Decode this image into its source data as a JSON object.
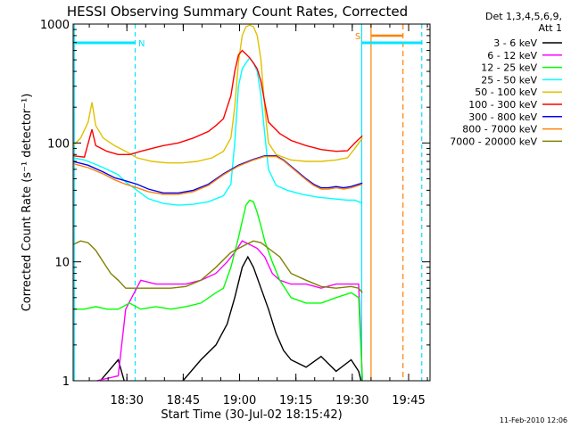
{
  "chart_data": {
    "type": "line",
    "title": "HESSI Observing Summary Count Rates, Corrected",
    "xlabel": "Start Time (30-Jul-02 18:15:42)",
    "ylabel": "Corrected Count Rate (s⁻¹ detector⁻¹)",
    "x_unit": "minutes after 18:15:42",
    "xlim": [
      0,
      95
    ],
    "ylim": [
      1,
      1000
    ],
    "yscale": "log",
    "x_ticks": [
      {
        "t": 14.3,
        "label": "18:30"
      },
      {
        "t": 29.3,
        "label": "18:45"
      },
      {
        "t": 44.3,
        "label": "19:00"
      },
      {
        "t": 59.3,
        "label": "19:15"
      },
      {
        "t": 74.3,
        "label": "19:30"
      },
      {
        "t": 89.3,
        "label": "19:45"
      }
    ],
    "y_ticks": [
      {
        "v": 1,
        "label": "1"
      },
      {
        "v": 10,
        "label": "10"
      },
      {
        "v": 100,
        "label": "100"
      },
      {
        "v": 1000,
        "label": "1000"
      }
    ],
    "legend": {
      "placement": "right",
      "header_lines": [
        "Det 1,3,4,5,6,9,",
        "Att 1"
      ]
    },
    "series": [
      {
        "name": "3 - 6 keV",
        "color": "#000000",
        "points": [
          [
            0,
            0.9
          ],
          [
            6,
            0.9
          ],
          [
            12,
            1.5
          ],
          [
            14,
            0.9
          ],
          [
            20,
            0.9
          ],
          [
            28,
            0.9
          ],
          [
            34,
            1.5
          ],
          [
            38,
            2
          ],
          [
            41,
            3
          ],
          [
            43,
            5
          ],
          [
            45,
            9
          ],
          [
            46.5,
            11
          ],
          [
            48,
            9
          ],
          [
            50,
            6
          ],
          [
            52,
            4
          ],
          [
            54,
            2.5
          ],
          [
            56,
            1.8
          ],
          [
            58,
            1.5
          ],
          [
            62,
            1.3
          ],
          [
            66,
            1.6
          ],
          [
            70,
            1.2
          ],
          [
            74,
            1.5
          ],
          [
            76,
            1.2
          ],
          [
            77,
            0.9
          ]
        ]
      },
      {
        "name": "6 - 12 keV",
        "color": "#ff00ff",
        "points": [
          [
            0,
            0.9
          ],
          [
            12,
            1.1
          ],
          [
            14,
            4
          ],
          [
            18,
            7
          ],
          [
            22,
            6.5
          ],
          [
            26,
            6.5
          ],
          [
            30,
            6.5
          ],
          [
            34,
            7
          ],
          [
            38,
            8
          ],
          [
            41,
            10
          ],
          [
            43,
            12
          ],
          [
            45,
            15
          ],
          [
            47,
            14
          ],
          [
            49,
            13
          ],
          [
            51,
            11
          ],
          [
            53,
            8
          ],
          [
            55,
            7
          ],
          [
            58,
            6.5
          ],
          [
            62,
            6.5
          ],
          [
            66,
            6
          ],
          [
            70,
            6.5
          ],
          [
            74,
            6.5
          ],
          [
            76,
            6.5
          ],
          [
            77,
            1
          ]
        ]
      },
      {
        "name": "12 - 25 keV",
        "color": "#00ff00",
        "points": [
          [
            0,
            4
          ],
          [
            3,
            4
          ],
          [
            6,
            4.2
          ],
          [
            9,
            4
          ],
          [
            12,
            4
          ],
          [
            15,
            4.5
          ],
          [
            18,
            4
          ],
          [
            22,
            4.2
          ],
          [
            26,
            4
          ],
          [
            30,
            4.2
          ],
          [
            34,
            4.5
          ],
          [
            38,
            5.5
          ],
          [
            40,
            6
          ],
          [
            42,
            9
          ],
          [
            44,
            16
          ],
          [
            45,
            22
          ],
          [
            46,
            30
          ],
          [
            47,
            33
          ],
          [
            48,
            32
          ],
          [
            49,
            26
          ],
          [
            50,
            20
          ],
          [
            51,
            15
          ],
          [
            53,
            10
          ],
          [
            55,
            7
          ],
          [
            58,
            5
          ],
          [
            62,
            4.5
          ],
          [
            66,
            4.5
          ],
          [
            70,
            5
          ],
          [
            74,
            5.5
          ],
          [
            76,
            5
          ],
          [
            77,
            1
          ]
        ]
      },
      {
        "name": "25 - 50 keV",
        "color": "#00ffff",
        "points": [
          [
            0,
            75
          ],
          [
            3,
            72
          ],
          [
            6,
            66
          ],
          [
            9,
            60
          ],
          [
            12,
            54
          ],
          [
            14,
            47
          ],
          [
            17,
            40
          ],
          [
            20,
            34
          ],
          [
            24,
            31
          ],
          [
            28,
            30
          ],
          [
            32,
            30.5
          ],
          [
            36,
            32
          ],
          [
            40,
            36
          ],
          [
            42,
            45
          ],
          [
            43,
            100
          ],
          [
            44,
            300
          ],
          [
            45,
            420
          ],
          [
            46,
            470
          ],
          [
            47,
            520
          ],
          [
            48,
            470
          ],
          [
            49,
            400
          ],
          [
            50,
            250
          ],
          [
            51,
            120
          ],
          [
            52,
            60
          ],
          [
            54,
            44
          ],
          [
            57,
            40
          ],
          [
            61,
            37
          ],
          [
            65,
            35
          ],
          [
            69,
            34
          ],
          [
            73,
            33
          ],
          [
            75,
            33
          ],
          [
            77,
            31
          ]
        ]
      },
      {
        "name": "50 - 100 keV",
        "color": "#e0c000",
        "points": [
          [
            0,
            95
          ],
          [
            2,
            110
          ],
          [
            4,
            150
          ],
          [
            5,
            220
          ],
          [
            6,
            140
          ],
          [
            8,
            110
          ],
          [
            11,
            95
          ],
          [
            14,
            85
          ],
          [
            17,
            75
          ],
          [
            21,
            70
          ],
          [
            25,
            68
          ],
          [
            29,
            68
          ],
          [
            33,
            70
          ],
          [
            37,
            75
          ],
          [
            40,
            85
          ],
          [
            42,
            110
          ],
          [
            43,
            200
          ],
          [
            44,
            480
          ],
          [
            45,
            800
          ],
          [
            46,
            950
          ],
          [
            47,
            980
          ],
          [
            48,
            950
          ],
          [
            49,
            800
          ],
          [
            50,
            500
          ],
          [
            51,
            200
          ],
          [
            52,
            100
          ],
          [
            54,
            80
          ],
          [
            58,
            72
          ],
          [
            62,
            70
          ],
          [
            66,
            70
          ],
          [
            70,
            72
          ],
          [
            73,
            75
          ],
          [
            75,
            90
          ],
          [
            77,
            110
          ]
        ]
      },
      {
        "name": "100 - 300 keV",
        "color": "#ff0000",
        "points": [
          [
            0,
            78
          ],
          [
            3,
            76
          ],
          [
            5,
            130
          ],
          [
            6,
            95
          ],
          [
            9,
            85
          ],
          [
            12,
            80
          ],
          [
            15,
            80
          ],
          [
            18,
            85
          ],
          [
            21,
            90
          ],
          [
            24,
            95
          ],
          [
            28,
            100
          ],
          [
            32,
            110
          ],
          [
            36,
            125
          ],
          [
            38,
            140
          ],
          [
            40,
            160
          ],
          [
            42,
            250
          ],
          [
            43,
            400
          ],
          [
            44,
            550
          ],
          [
            45,
            600
          ],
          [
            46,
            560
          ],
          [
            47,
            520
          ],
          [
            48,
            470
          ],
          [
            49,
            420
          ],
          [
            50,
            330
          ],
          [
            51,
            220
          ],
          [
            52,
            150
          ],
          [
            55,
            120
          ],
          [
            58,
            105
          ],
          [
            62,
            95
          ],
          [
            66,
            88
          ],
          [
            70,
            85
          ],
          [
            73,
            86
          ],
          [
            75,
            100
          ],
          [
            77,
            115
          ]
        ]
      },
      {
        "name": "300 - 800 keV",
        "color": "#0000ff",
        "points": [
          [
            0,
            70
          ],
          [
            4,
            65
          ],
          [
            8,
            57
          ],
          [
            11,
            51
          ],
          [
            14,
            48
          ],
          [
            17,
            45
          ],
          [
            20,
            41
          ],
          [
            24,
            38
          ],
          [
            28,
            38
          ],
          [
            32,
            40
          ],
          [
            36,
            45
          ],
          [
            40,
            55
          ],
          [
            44,
            65
          ],
          [
            48,
            73
          ],
          [
            51,
            78
          ],
          [
            54,
            78
          ],
          [
            56,
            72
          ],
          [
            59,
            60
          ],
          [
            62,
            50
          ],
          [
            64,
            45
          ],
          [
            66,
            42
          ],
          [
            68,
            42
          ],
          [
            70,
            43
          ],
          [
            72,
            42
          ],
          [
            74,
            43
          ],
          [
            76,
            45
          ],
          [
            77,
            46
          ]
        ]
      },
      {
        "name": "800 - 7000 keV",
        "color": "#ff8000",
        "points": [
          [
            0,
            67
          ],
          [
            4,
            62
          ],
          [
            8,
            55
          ],
          [
            11,
            49
          ],
          [
            14,
            45
          ],
          [
            17,
            42
          ],
          [
            20,
            39
          ],
          [
            24,
            37
          ],
          [
            28,
            37
          ],
          [
            32,
            39
          ],
          [
            36,
            44
          ],
          [
            40,
            54
          ],
          [
            44,
            64
          ],
          [
            48,
            72
          ],
          [
            51,
            77
          ],
          [
            54,
            77
          ],
          [
            56,
            71
          ],
          [
            59,
            59
          ],
          [
            62,
            49
          ],
          [
            64,
            44
          ],
          [
            66,
            41
          ],
          [
            68,
            41
          ],
          [
            70,
            42
          ],
          [
            72,
            41
          ],
          [
            74,
            42
          ],
          [
            76,
            44
          ],
          [
            77,
            45
          ]
        ]
      },
      {
        "name": "7000 - 20000 keV",
        "color": "#808000",
        "points": [
          [
            0,
            14
          ],
          [
            2,
            15
          ],
          [
            4,
            14.5
          ],
          [
            6,
            12.5
          ],
          [
            8,
            10
          ],
          [
            10,
            8
          ],
          [
            12,
            7
          ],
          [
            14,
            6
          ],
          [
            18,
            6
          ],
          [
            22,
            6
          ],
          [
            26,
            6
          ],
          [
            30,
            6.2
          ],
          [
            34,
            7
          ],
          [
            38,
            9
          ],
          [
            42,
            12
          ],
          [
            46,
            14
          ],
          [
            48,
            15
          ],
          [
            50,
            14.5
          ],
          [
            52,
            13
          ],
          [
            55,
            11
          ],
          [
            58,
            8
          ],
          [
            62,
            7
          ],
          [
            66,
            6.2
          ],
          [
            70,
            6
          ],
          [
            74,
            6.2
          ],
          [
            76,
            6
          ],
          [
            77,
            5.5
          ]
        ]
      }
    ],
    "annotations": [
      {
        "text": "N"
      },
      {
        "text": "S"
      }
    ],
    "footer_text": "11-Feb-2010 12:06"
  }
}
